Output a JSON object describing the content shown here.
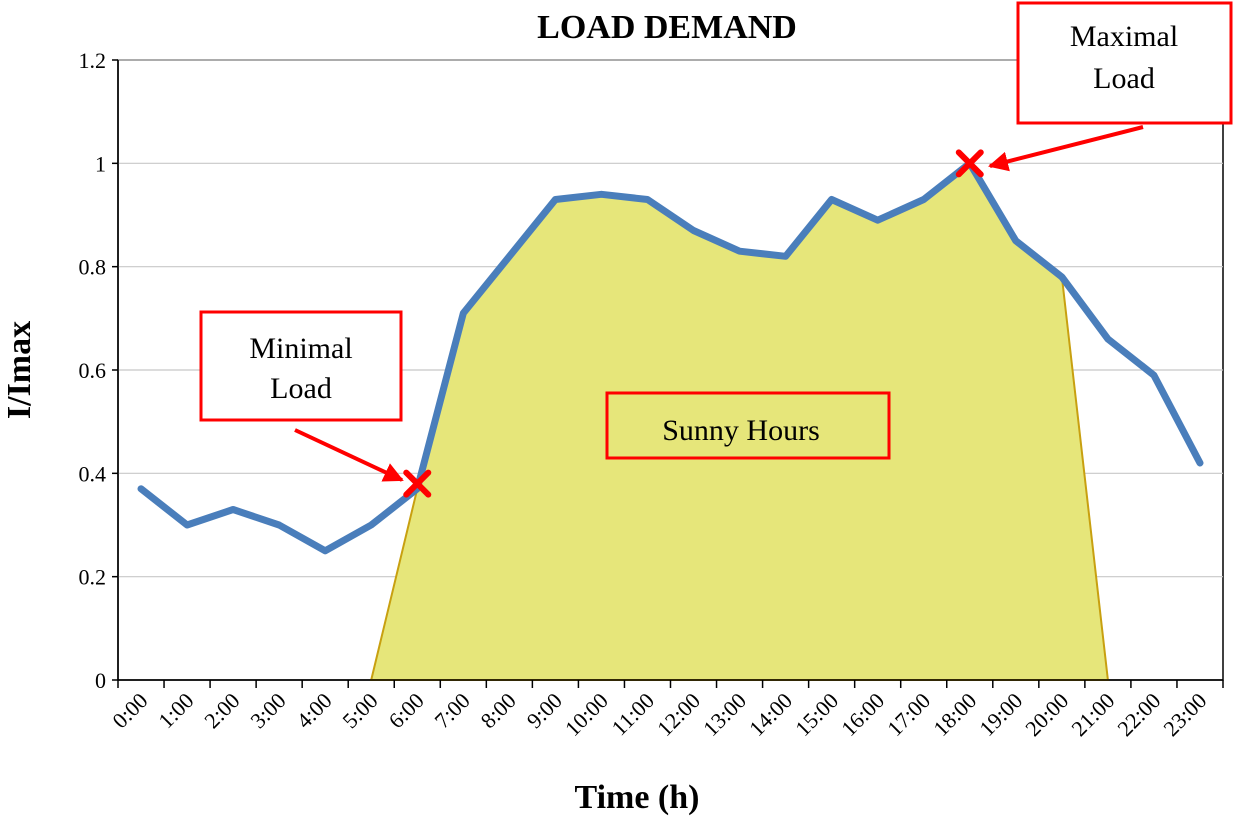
{
  "chart_data": {
    "type": "line",
    "title": "LOAD DEMAND",
    "xlabel": "Time (h)",
    "ylabel": "I/Imax",
    "ylim": [
      0,
      1.2
    ],
    "yticks": [
      "0",
      "0.2",
      "0.4",
      "0.6",
      "0.8",
      "1",
      "1.2"
    ],
    "categories": [
      "0:00",
      "1:00",
      "2:00",
      "3:00",
      "4:00",
      "5:00",
      "6:00",
      "7:00",
      "8:00",
      "9:00",
      "10:00",
      "11:00",
      "12:00",
      "13:00",
      "14:00",
      "15:00",
      "16:00",
      "17:00",
      "18:00",
      "19:00",
      "20:00",
      "21:00",
      "22:00",
      "23:00"
    ],
    "grid": true,
    "series": [
      {
        "type": "line",
        "color": "#4a7ebb",
        "x": [
          0.5,
          1.5,
          2.5,
          3.5,
          4.5,
          5.5,
          6.5,
          7.5,
          8.5,
          9.5,
          10.5,
          11.5,
          12.5,
          13.5,
          14.5,
          15.5,
          16.5,
          17.5,
          18.5,
          19.5,
          20.5,
          21.5,
          22.5,
          23.5
        ],
        "values": [
          0.37,
          0.3,
          0.33,
          0.3,
          0.25,
          0.3,
          0.37,
          0.71,
          0.82,
          0.93,
          0.94,
          0.93,
          0.87,
          0.83,
          0.82,
          0.93,
          0.89,
          0.93,
          1.0,
          0.85,
          0.78,
          0.66,
          0.59,
          0.42
        ]
      },
      {
        "type": "area",
        "color": "#e6e67a",
        "edge_color": "#c8a010",
        "x": [
          5.5,
          6.5,
          7.5,
          8.5,
          9.5,
          10.5,
          11.5,
          12.5,
          13.5,
          14.5,
          15.5,
          16.5,
          17.5,
          18.5,
          19.5,
          20.5,
          21.5
        ],
        "values": [
          0,
          0.37,
          0.71,
          0.82,
          0.93,
          0.94,
          0.93,
          0.87,
          0.83,
          0.82,
          0.93,
          0.89,
          0.93,
          1.0,
          0.85,
          0.78,
          0
        ]
      }
    ],
    "markers": [
      {
        "x": 6.5,
        "y": 0.38,
        "symbol": "x",
        "color": "#ff0000"
      },
      {
        "x": 18.5,
        "y": 1.0,
        "symbol": "x",
        "color": "#ff0000"
      }
    ],
    "annotations": [
      {
        "lines": [
          "Minimal",
          "Load"
        ],
        "color": "#ff0000"
      },
      {
        "lines": [
          "Maximal",
          "Load"
        ],
        "color": "#ff0000"
      },
      {
        "lines": [
          "Sunny Hours"
        ],
        "color": "#ff0000"
      }
    ]
  }
}
